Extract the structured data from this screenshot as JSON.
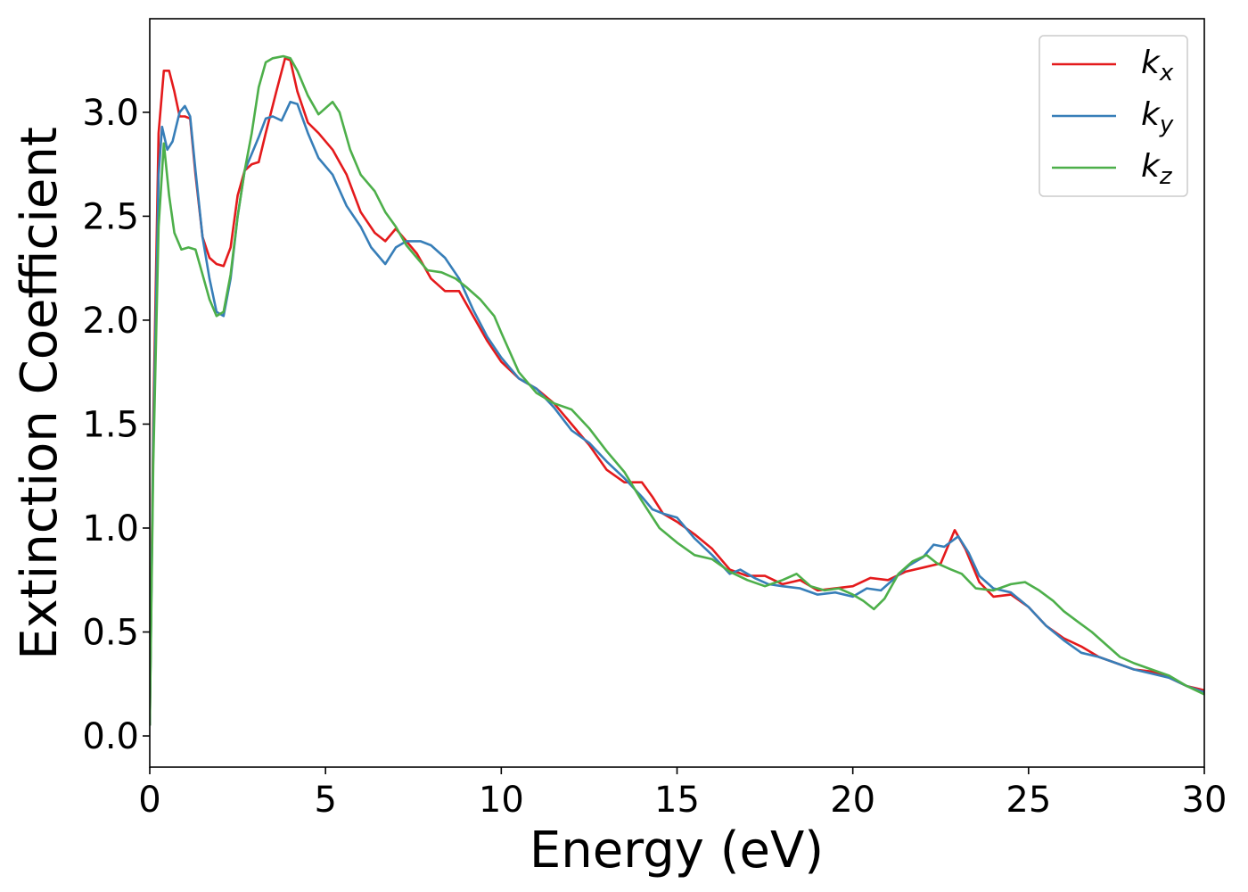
{
  "chart_data": {
    "type": "line",
    "title": "",
    "xlabel": "Energy (eV)",
    "ylabel": "Extinction Coefficient",
    "xlim": [
      0,
      30
    ],
    "ylim": [
      -0.15,
      3.45
    ],
    "xticks": [
      0,
      5,
      10,
      15,
      20,
      25,
      30
    ],
    "xtick_labels": [
      "0",
      "5",
      "10",
      "15",
      "20",
      "25",
      "30"
    ],
    "yticks": [
      0.0,
      0.5,
      1.0,
      1.5,
      2.0,
      2.5,
      3.0
    ],
    "ytick_labels": [
      "0.0",
      "0.5",
      "1.0",
      "1.5",
      "2.0",
      "2.5",
      "3.0"
    ],
    "grid": false,
    "legend_position": "top-right",
    "series": [
      {
        "name": "k",
        "subscript": "x",
        "color": "#e41a1c",
        "points": [
          [
            0,
            0.05
          ],
          [
            0.1,
            1.5
          ],
          [
            0.25,
            2.9
          ],
          [
            0.4,
            3.2
          ],
          [
            0.55,
            3.2
          ],
          [
            0.7,
            3.1
          ],
          [
            0.85,
            2.98
          ],
          [
            1.0,
            2.98
          ],
          [
            1.15,
            2.97
          ],
          [
            1.3,
            2.7
          ],
          [
            1.5,
            2.4
          ],
          [
            1.7,
            2.3
          ],
          [
            1.9,
            2.27
          ],
          [
            2.1,
            2.26
          ],
          [
            2.3,
            2.35
          ],
          [
            2.5,
            2.6
          ],
          [
            2.7,
            2.72
          ],
          [
            2.9,
            2.75
          ],
          [
            3.1,
            2.76
          ],
          [
            3.3,
            2.9
          ],
          [
            3.6,
            3.1
          ],
          [
            3.85,
            3.26
          ],
          [
            4.0,
            3.25
          ],
          [
            4.2,
            3.1
          ],
          [
            4.5,
            2.95
          ],
          [
            4.8,
            2.9
          ],
          [
            5.2,
            2.82
          ],
          [
            5.6,
            2.7
          ],
          [
            6.0,
            2.52
          ],
          [
            6.4,
            2.42
          ],
          [
            6.7,
            2.38
          ],
          [
            7.0,
            2.44
          ],
          [
            7.3,
            2.38
          ],
          [
            7.6,
            2.32
          ],
          [
            8.0,
            2.2
          ],
          [
            8.4,
            2.14
          ],
          [
            8.8,
            2.14
          ],
          [
            9.2,
            2.02
          ],
          [
            9.6,
            1.9
          ],
          [
            10.0,
            1.8
          ],
          [
            10.5,
            1.72
          ],
          [
            11.0,
            1.67
          ],
          [
            11.5,
            1.6
          ],
          [
            12.0,
            1.5
          ],
          [
            12.5,
            1.4
          ],
          [
            13.0,
            1.28
          ],
          [
            13.5,
            1.22
          ],
          [
            14.0,
            1.22
          ],
          [
            14.3,
            1.15
          ],
          [
            14.6,
            1.07
          ],
          [
            15.0,
            1.03
          ],
          [
            15.5,
            0.97
          ],
          [
            16.0,
            0.9
          ],
          [
            16.5,
            0.8
          ],
          [
            17.0,
            0.77
          ],
          [
            17.5,
            0.77
          ],
          [
            18.0,
            0.73
          ],
          [
            18.5,
            0.75
          ],
          [
            19.0,
            0.7
          ],
          [
            19.5,
            0.71
          ],
          [
            20.0,
            0.72
          ],
          [
            20.5,
            0.76
          ],
          [
            21.0,
            0.75
          ],
          [
            21.5,
            0.79
          ],
          [
            22.0,
            0.81
          ],
          [
            22.5,
            0.83
          ],
          [
            22.9,
            0.99
          ],
          [
            23.2,
            0.9
          ],
          [
            23.6,
            0.74
          ],
          [
            24.0,
            0.67
          ],
          [
            24.5,
            0.68
          ],
          [
            25.0,
            0.62
          ],
          [
            25.5,
            0.53
          ],
          [
            26.0,
            0.47
          ],
          [
            26.5,
            0.43
          ],
          [
            27.0,
            0.38
          ],
          [
            27.5,
            0.35
          ],
          [
            28.0,
            0.32
          ],
          [
            28.5,
            0.31
          ],
          [
            29.0,
            0.28
          ],
          [
            29.5,
            0.24
          ],
          [
            30.0,
            0.22
          ]
        ]
      },
      {
        "name": "k",
        "subscript": "y",
        "color": "#377eb8",
        "points": [
          [
            0,
            0.05
          ],
          [
            0.1,
            1.4
          ],
          [
            0.25,
            2.7
          ],
          [
            0.35,
            2.93
          ],
          [
            0.5,
            2.82
          ],
          [
            0.65,
            2.86
          ],
          [
            0.85,
            3.0
          ],
          [
            1.0,
            3.03
          ],
          [
            1.15,
            2.98
          ],
          [
            1.3,
            2.72
          ],
          [
            1.5,
            2.4
          ],
          [
            1.7,
            2.2
          ],
          [
            1.9,
            2.04
          ],
          [
            2.1,
            2.02
          ],
          [
            2.3,
            2.2
          ],
          [
            2.5,
            2.5
          ],
          [
            2.7,
            2.72
          ],
          [
            2.9,
            2.8
          ],
          [
            3.1,
            2.88
          ],
          [
            3.3,
            2.97
          ],
          [
            3.5,
            2.98
          ],
          [
            3.75,
            2.96
          ],
          [
            4.0,
            3.05
          ],
          [
            4.2,
            3.04
          ],
          [
            4.5,
            2.9
          ],
          [
            4.8,
            2.78
          ],
          [
            5.2,
            2.7
          ],
          [
            5.6,
            2.55
          ],
          [
            6.0,
            2.45
          ],
          [
            6.3,
            2.35
          ],
          [
            6.7,
            2.27
          ],
          [
            7.0,
            2.35
          ],
          [
            7.3,
            2.38
          ],
          [
            7.7,
            2.38
          ],
          [
            8.0,
            2.36
          ],
          [
            8.4,
            2.3
          ],
          [
            8.8,
            2.2
          ],
          [
            9.2,
            2.05
          ],
          [
            9.6,
            1.92
          ],
          [
            10.0,
            1.82
          ],
          [
            10.5,
            1.72
          ],
          [
            11.0,
            1.67
          ],
          [
            11.5,
            1.58
          ],
          [
            12.0,
            1.47
          ],
          [
            12.5,
            1.41
          ],
          [
            13.0,
            1.32
          ],
          [
            13.5,
            1.24
          ],
          [
            14.0,
            1.15
          ],
          [
            14.3,
            1.09
          ],
          [
            14.6,
            1.07
          ],
          [
            15.0,
            1.05
          ],
          [
            15.5,
            0.95
          ],
          [
            16.0,
            0.87
          ],
          [
            16.5,
            0.78
          ],
          [
            16.8,
            0.8
          ],
          [
            17.2,
            0.76
          ],
          [
            17.6,
            0.73
          ],
          [
            18.0,
            0.72
          ],
          [
            18.5,
            0.71
          ],
          [
            19.0,
            0.68
          ],
          [
            19.5,
            0.69
          ],
          [
            20.0,
            0.67
          ],
          [
            20.4,
            0.71
          ],
          [
            20.8,
            0.7
          ],
          [
            21.2,
            0.76
          ],
          [
            21.6,
            0.82
          ],
          [
            22.0,
            0.86
          ],
          [
            22.3,
            0.92
          ],
          [
            22.6,
            0.91
          ],
          [
            23.0,
            0.96
          ],
          [
            23.3,
            0.88
          ],
          [
            23.6,
            0.77
          ],
          [
            24.0,
            0.71
          ],
          [
            24.5,
            0.69
          ],
          [
            25.0,
            0.62
          ],
          [
            25.5,
            0.53
          ],
          [
            26.0,
            0.46
          ],
          [
            26.5,
            0.4
          ],
          [
            27.0,
            0.38
          ],
          [
            27.5,
            0.35
          ],
          [
            28.0,
            0.32
          ],
          [
            28.5,
            0.3
          ],
          [
            29.0,
            0.28
          ],
          [
            29.5,
            0.24
          ],
          [
            30.0,
            0.21
          ]
        ]
      },
      {
        "name": "k",
        "subscript": "z",
        "color": "#4daf4a",
        "points": [
          [
            0,
            0.05
          ],
          [
            0.1,
            1.3
          ],
          [
            0.25,
            2.45
          ],
          [
            0.4,
            2.85
          ],
          [
            0.55,
            2.6
          ],
          [
            0.7,
            2.42
          ],
          [
            0.9,
            2.34
          ],
          [
            1.1,
            2.35
          ],
          [
            1.3,
            2.34
          ],
          [
            1.5,
            2.22
          ],
          [
            1.7,
            2.1
          ],
          [
            1.9,
            2.02
          ],
          [
            2.1,
            2.04
          ],
          [
            2.3,
            2.22
          ],
          [
            2.5,
            2.5
          ],
          [
            2.7,
            2.72
          ],
          [
            2.9,
            2.9
          ],
          [
            3.1,
            3.12
          ],
          [
            3.3,
            3.24
          ],
          [
            3.5,
            3.26
          ],
          [
            3.8,
            3.27
          ],
          [
            4.0,
            3.26
          ],
          [
            4.2,
            3.2
          ],
          [
            4.5,
            3.08
          ],
          [
            4.8,
            2.99
          ],
          [
            5.2,
            3.05
          ],
          [
            5.4,
            3.0
          ],
          [
            5.7,
            2.82
          ],
          [
            6.0,
            2.7
          ],
          [
            6.4,
            2.62
          ],
          [
            6.7,
            2.52
          ],
          [
            7.0,
            2.45
          ],
          [
            7.3,
            2.36
          ],
          [
            7.6,
            2.3
          ],
          [
            7.9,
            2.24
          ],
          [
            8.3,
            2.23
          ],
          [
            8.7,
            2.2
          ],
          [
            9.0,
            2.16
          ],
          [
            9.4,
            2.1
          ],
          [
            9.8,
            2.02
          ],
          [
            10.0,
            1.94
          ],
          [
            10.5,
            1.75
          ],
          [
            11.0,
            1.65
          ],
          [
            11.5,
            1.6
          ],
          [
            12.0,
            1.57
          ],
          [
            12.5,
            1.48
          ],
          [
            13.0,
            1.37
          ],
          [
            13.5,
            1.27
          ],
          [
            14.0,
            1.13
          ],
          [
            14.5,
            1.0
          ],
          [
            15.0,
            0.93
          ],
          [
            15.5,
            0.87
          ],
          [
            16.0,
            0.85
          ],
          [
            16.5,
            0.79
          ],
          [
            17.0,
            0.75
          ],
          [
            17.5,
            0.72
          ],
          [
            18.0,
            0.75
          ],
          [
            18.4,
            0.78
          ],
          [
            18.8,
            0.72
          ],
          [
            19.2,
            0.7
          ],
          [
            19.6,
            0.71
          ],
          [
            20.0,
            0.68
          ],
          [
            20.3,
            0.65
          ],
          [
            20.6,
            0.61
          ],
          [
            20.9,
            0.66
          ],
          [
            21.3,
            0.78
          ],
          [
            21.7,
            0.84
          ],
          [
            22.1,
            0.87
          ],
          [
            22.4,
            0.83
          ],
          [
            22.8,
            0.8
          ],
          [
            23.1,
            0.78
          ],
          [
            23.5,
            0.71
          ],
          [
            24.0,
            0.7
          ],
          [
            24.5,
            0.73
          ],
          [
            24.9,
            0.74
          ],
          [
            25.3,
            0.7
          ],
          [
            25.7,
            0.65
          ],
          [
            26.0,
            0.6
          ],
          [
            26.4,
            0.55
          ],
          [
            26.8,
            0.5
          ],
          [
            27.2,
            0.44
          ],
          [
            27.6,
            0.38
          ],
          [
            28.0,
            0.35
          ],
          [
            28.5,
            0.32
          ],
          [
            29.0,
            0.29
          ],
          [
            29.5,
            0.24
          ],
          [
            30.0,
            0.2
          ]
        ]
      }
    ]
  }
}
